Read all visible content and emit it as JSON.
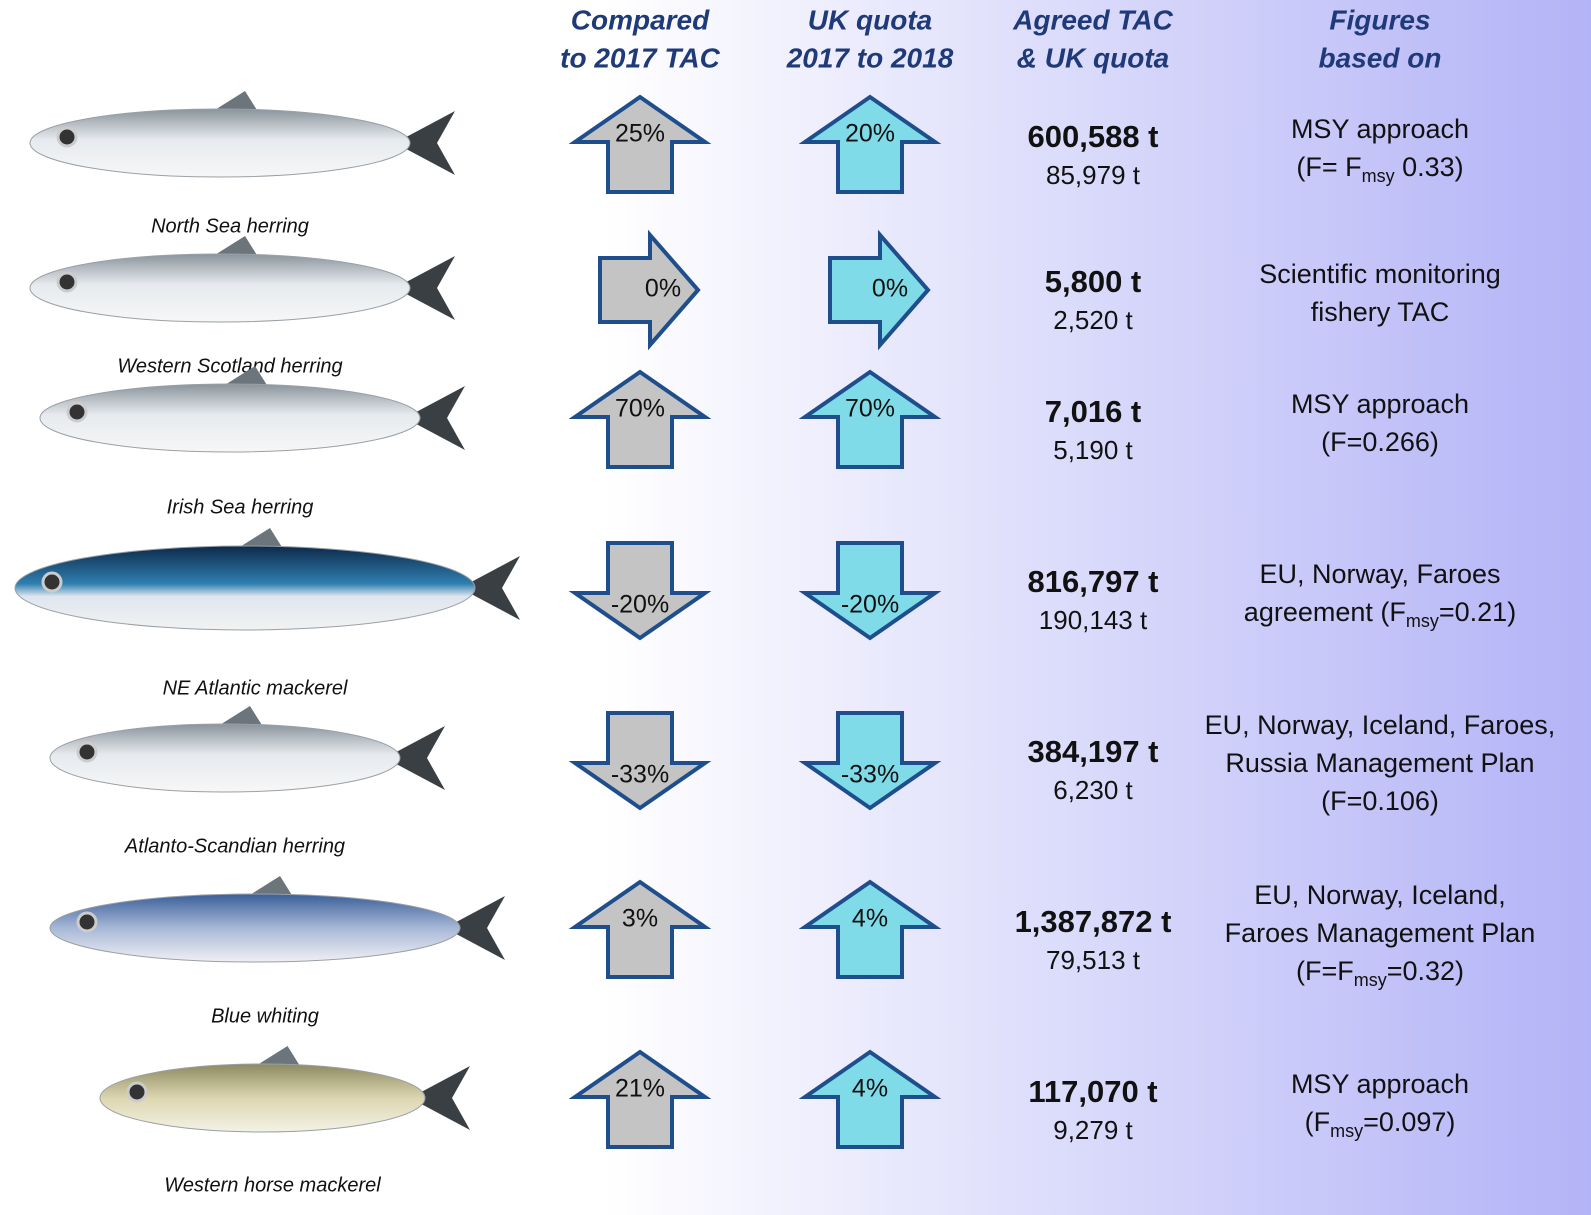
{
  "headers": [
    [
      "Compared",
      "to 2017 TAC"
    ],
    [
      "UK quota",
      "2017 to 2018"
    ],
    [
      "Agreed TAC",
      "& UK quota"
    ],
    [
      "Figures",
      "based on"
    ]
  ],
  "rows": [
    {
      "name": "North Sea herring",
      "tac_change": "25%",
      "uk_change": "20%",
      "direction": "up",
      "tac": "600,588 t",
      "uk_quota": "85,979 t",
      "basis": [
        [
          {
            "t": "MSY approach"
          }
        ],
        [
          {
            "t": "(F= F"
          },
          {
            "sub": "msy"
          },
          {
            "t": " 0.33)"
          }
        ]
      ]
    },
    {
      "name": "Western Scotland herring",
      "tac_change": "0%",
      "uk_change": "0%",
      "direction": "right",
      "tac": "5,800 t",
      "uk_quota": "2,520 t",
      "basis": [
        [
          {
            "t": "Scientific monitoring"
          }
        ],
        [
          {
            "t": "fishery TAC"
          }
        ]
      ]
    },
    {
      "name": "Irish Sea herring",
      "tac_change": "70%",
      "uk_change": "70%",
      "direction": "up",
      "tac": "7,016 t",
      "uk_quota": "5,190 t",
      "basis": [
        [
          {
            "t": "MSY approach"
          }
        ],
        [
          {
            "t": "(F=0.266)"
          }
        ]
      ]
    },
    {
      "name": "NE Atlantic mackerel",
      "tac_change": "-20%",
      "uk_change": "-20%",
      "direction": "down",
      "tac": "816,797 t",
      "uk_quota": "190,143 t",
      "basis": [
        [
          {
            "t": "EU, Norway, Faroes"
          }
        ],
        [
          {
            "t": "agreement (F"
          },
          {
            "sub": "msy"
          },
          {
            "t": "=0.21)"
          }
        ]
      ]
    },
    {
      "name": "Atlanto-Scandian herring",
      "tac_change": "-33%",
      "uk_change": "-33%",
      "direction": "down",
      "tac": "384,197 t",
      "uk_quota": "6,230 t",
      "basis": [
        [
          {
            "t": "EU, Norway, Iceland, Faroes,"
          }
        ],
        [
          {
            "t": "Russia Management Plan"
          }
        ],
        [
          {
            "t": "(F=0.106)"
          }
        ]
      ]
    },
    {
      "name": "Blue whiting",
      "tac_change": "3%",
      "uk_change": "4%",
      "direction": "up",
      "tac": "1,387,872 t",
      "uk_quota": "79,513 t",
      "basis": [
        [
          {
            "t": "EU, Norway, Iceland,"
          }
        ],
        [
          {
            "t": "Faroes Management Plan"
          }
        ],
        [
          {
            "t": "(F=F"
          },
          {
            "sub": "msy"
          },
          {
            "t": "=0.32)"
          }
        ]
      ]
    },
    {
      "name": "Western horse mackerel",
      "tac_change": "21%",
      "uk_change": "4%",
      "direction": "up",
      "tac": "117,070 t",
      "uk_quota": "9,279 t",
      "basis": [
        [
          {
            "t": "MSY approach"
          }
        ],
        [
          {
            "t": "(F"
          },
          {
            "sub": "msy"
          },
          {
            "t": "=0.097)"
          }
        ]
      ]
    }
  ]
}
